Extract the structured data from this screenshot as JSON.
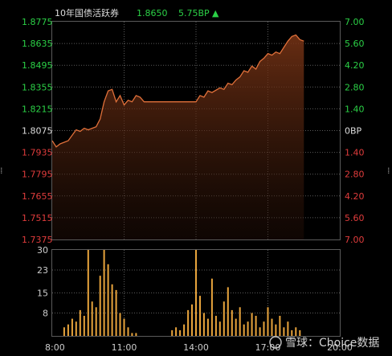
{
  "header": {
    "instrument": "10年国债活跃券",
    "price": "1.8650",
    "change": "5.75BP",
    "change_arrow": "▲"
  },
  "watermark": "雪球：Choice数据",
  "colors": {
    "background": "#000000",
    "grid": "#5a5a5a",
    "line": "#e0703a",
    "up": "#2bd046",
    "down": "#e03c3c",
    "neutral": "#dddddd",
    "volume": "#e8a43c",
    "axis_text": "#cccccc"
  },
  "chart_data": [
    {
      "type": "area",
      "x_ticks": [
        "8:00",
        "11:00",
        "14:00",
        "17:00",
        "20:00"
      ],
      "x_range": [
        "8:00",
        "20:00"
      ],
      "y_left_ticks": [
        "1.8775",
        "1.8635",
        "1.8495",
        "1.8355",
        "1.8215",
        "1.8075",
        "1.7935",
        "1.7795",
        "1.7655",
        "1.7515",
        "1.7375"
      ],
      "y_right_ticks": [
        "7.00",
        "5.60",
        "4.20",
        "2.80",
        "1.40",
        "0BP",
        "1.40",
        "2.80",
        "4.20",
        "5.60",
        "7.00"
      ],
      "ylim": [
        1.7375,
        1.8775
      ],
      "reference": 1.8075,
      "series": [
        {
          "x": [
            "8:00",
            "8:10",
            "8:20",
            "8:40",
            "9:00",
            "9:10",
            "9:20",
            "9:30",
            "9:50",
            "10:00",
            "10:10",
            "10:20",
            "10:30",
            "10:40",
            "10:50",
            "11:00",
            "11:10",
            "11:20",
            "11:30",
            "11:40",
            "11:50",
            "12:00",
            "12:30",
            "13:00",
            "13:30",
            "14:00",
            "14:10",
            "14:20",
            "14:30",
            "14:40",
            "15:00",
            "15:10",
            "15:20",
            "15:30",
            "15:40",
            "15:50",
            "16:00",
            "16:10",
            "16:20",
            "16:30",
            "16:40",
            "16:50",
            "17:00",
            "17:10",
            "17:20",
            "17:30",
            "17:40",
            "17:50",
            "18:00",
            "18:10",
            "18:20",
            "18:30"
          ],
          "y": [
            1.801,
            1.797,
            1.799,
            1.801,
            1.808,
            1.807,
            1.809,
            1.808,
            1.81,
            1.815,
            1.826,
            1.833,
            1.834,
            1.826,
            1.83,
            1.824,
            1.827,
            1.826,
            1.83,
            1.829,
            1.826,
            1.826,
            1.826,
            1.826,
            1.826,
            1.826,
            1.83,
            1.829,
            1.833,
            1.832,
            1.835,
            1.834,
            1.838,
            1.837,
            1.84,
            1.842,
            1.846,
            1.845,
            1.849,
            1.847,
            1.852,
            1.854,
            1.857,
            1.856,
            1.858,
            1.857,
            1.861,
            1.865,
            1.868,
            1.869,
            1.866,
            1.865
          ]
        }
      ]
    },
    {
      "type": "bar",
      "y_ticks": [
        "30",
        "23",
        "15",
        "8"
      ],
      "ylim": [
        0,
        30
      ],
      "x": [
        "8:30",
        "8:40",
        "8:50",
        "9:00",
        "9:10",
        "9:20",
        "9:30",
        "9:40",
        "9:50",
        "10:00",
        "10:10",
        "10:20",
        "10:30",
        "10:40",
        "10:50",
        "11:00",
        "11:10",
        "11:20",
        "11:30",
        "13:00",
        "13:10",
        "13:20",
        "13:30",
        "13:40",
        "13:50",
        "14:00",
        "14:10",
        "14:20",
        "14:30",
        "14:40",
        "14:50",
        "15:00",
        "15:10",
        "15:20",
        "15:30",
        "15:40",
        "15:50",
        "16:00",
        "16:10",
        "16:20",
        "16:30",
        "16:40",
        "16:50",
        "17:00",
        "17:10",
        "17:20",
        "17:30",
        "17:40",
        "17:50",
        "18:00",
        "18:10",
        "18:20"
      ],
      "values": [
        3,
        4,
        6,
        5,
        9,
        7,
        30,
        12,
        10,
        21,
        30,
        25,
        18,
        16,
        8,
        6,
        3,
        1,
        1,
        2,
        3,
        2,
        4,
        9,
        11,
        30,
        14,
        8,
        6,
        20,
        7,
        5,
        12,
        17,
        9,
        6,
        10,
        4,
        5,
        8,
        7,
        3,
        5,
        10,
        6,
        4,
        7,
        3,
        5,
        2,
        3,
        2
      ]
    }
  ]
}
